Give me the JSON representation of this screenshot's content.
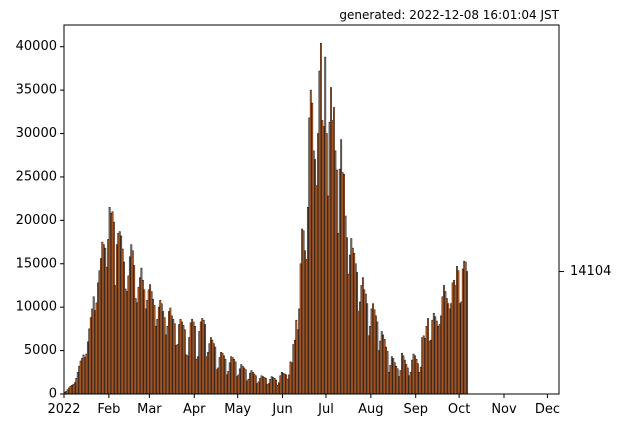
{
  "header": {
    "generated_label": "generated: 2022-12-08 16:01:04 JST"
  },
  "colors": {
    "bar_fill": "#f0772a",
    "bar_edge": "#1a1a1a",
    "axis": "#000000",
    "background": "#ffffff"
  },
  "chart_data": {
    "type": "bar",
    "title": "",
    "xlabel": "",
    "ylabel": "",
    "grid": false,
    "legend": "none",
    "x_start": "2022-01-01",
    "x_end": "2022-12-08",
    "ylim": [
      0,
      42500
    ],
    "y_ticks": [
      0,
      5000,
      10000,
      15000,
      20000,
      25000,
      30000,
      35000,
      40000
    ],
    "x_tick_labels": [
      "2022",
      "Feb",
      "Mar",
      "Apr",
      "May",
      "Jun",
      "Jul",
      "Aug",
      "Sep",
      "Oct",
      "Nov",
      "Dec"
    ],
    "annotation": {
      "label": "14104",
      "value": 14104
    },
    "series": [
      {
        "values": [
          200,
          300,
          500,
          700,
          900,
          1000,
          1100,
          1300,
          1800,
          2500,
          3200,
          3800,
          4100,
          4500,
          4200,
          4600,
          6000,
          7500,
          8800,
          9800,
          11200,
          9600,
          10500,
          12800,
          14200,
          15600,
          17500,
          17200,
          16800,
          14600,
          17800,
          21500,
          20800,
          21000,
          19800,
          12500,
          17200,
          18500,
          18700,
          18200,
          16700,
          15200,
          12100,
          11800,
          13600,
          15800,
          17200,
          16500,
          14800,
          11000,
          10500,
          12300,
          13400,
          14500,
          13100,
          12000,
          9800,
          10800,
          12000,
          12600,
          11800,
          10900,
          10200,
          7800,
          8600,
          10000,
          10800,
          10400,
          9500,
          8800,
          6800,
          7800,
          9500,
          9900,
          9000,
          8600,
          8100,
          5600,
          5700,
          8000,
          8600,
          8300,
          7900,
          7400,
          4500,
          4400,
          6500,
          8200,
          8600,
          8300,
          7800,
          4000,
          4300,
          7200,
          8300,
          8700,
          8500,
          8000,
          4300,
          4800,
          5800,
          6500,
          6200,
          5800,
          5400,
          2800,
          3000,
          4200,
          4800,
          4700,
          4400,
          4000,
          2200,
          2600,
          3600,
          4300,
          4200,
          4000,
          3700,
          2000,
          2200,
          2900,
          3400,
          3200,
          3000,
          2800,
          1500,
          1700,
          2400,
          2700,
          2500,
          2300,
          2100,
          1200,
          1400,
          1800,
          2100,
          2000,
          1900,
          1800,
          1100,
          1200,
          1700,
          2000,
          1900,
          1800,
          1600,
          1000,
          1300,
          2100,
          2500,
          2400,
          2300,
          2200,
          1700,
          2200,
          3700,
          3600,
          5700,
          6200,
          8500,
          7400,
          9800,
          15000,
          19000,
          18800,
          16500,
          15500,
          21500,
          31800,
          35000,
          33500,
          28000,
          27000,
          24000,
          30000,
          37200,
          40400,
          31500,
          30800,
          38800,
          30000,
          22800,
          31300,
          35300,
          31500,
          33000,
          28000,
          25800,
          18500,
          25900,
          29300,
          25500,
          25300,
          20500,
          18000,
          13800,
          16000,
          17900,
          16800,
          16200,
          15000,
          14000,
          9500,
          10600,
          12500,
          13400,
          12000,
          11500,
          10400,
          6700,
          7800,
          9800,
          10400,
          9700,
          9000,
          8300,
          5000,
          6100,
          7200,
          6800,
          6300,
          5400,
          4900,
          2500,
          3300,
          4300,
          4100,
          3600,
          3200,
          2900,
          2000,
          2700,
          4700,
          4400,
          3900,
          3400,
          3000,
          2100,
          2500,
          3900,
          4600,
          4400,
          4000,
          3500,
          2500,
          3100,
          6500,
          6700,
          6400,
          7800,
          8700,
          6100,
          6200,
          8500,
          9300,
          8900,
          8400,
          7800,
          8000,
          9000,
          11200,
          12500,
          11800,
          11000,
          10400,
          9800,
          10400,
          12800,
          13100,
          12500,
          14700,
          14200,
          10400,
          10600,
          14400,
          15300,
          15200,
          14104
        ]
      }
    ]
  }
}
